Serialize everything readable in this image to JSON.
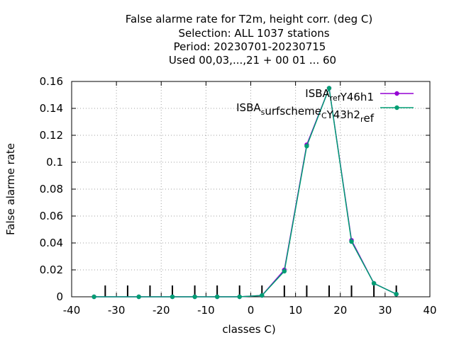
{
  "chart_data": {
    "type": "line",
    "title_lines": [
      "False alarme rate  for T2m, height corr. (deg C)",
      "Selection: ALL   1037 stations",
      "Period: 20230701-20230715",
      "Used  00,03,...,21  + 00 01 ... 60"
    ],
    "xlabel": "classes C)",
    "ylabel": "False alarme rate",
    "xlim": [
      -40,
      40
    ],
    "ylim": [
      0,
      0.16
    ],
    "xticks": [
      -40,
      -30,
      -20,
      -10,
      0,
      10,
      20,
      30,
      40
    ],
    "yticks": [
      0,
      0.02,
      0.04,
      0.06,
      0.08,
      0.1,
      0.12,
      0.14,
      0.16
    ],
    "grid": true,
    "legend_position": "top-right",
    "class_markers": [
      -32.5,
      -27.5,
      -22.5,
      -17.5,
      -12.5,
      -7.5,
      -2.5,
      2.5,
      7.5,
      12.5,
      17.5,
      22.5,
      27.5,
      32.5
    ],
    "series": [
      {
        "name": "ISBA_ref_Y46h1",
        "legend_parts": [
          [
            "ISBA",
            ""
          ],
          [
            "ref",
            "sub"
          ],
          [
            "Y46h1",
            ""
          ]
        ],
        "color": "#9400d3",
        "x": [
          -35,
          -25,
          -17.5,
          -12.5,
          -7.5,
          -2.5,
          2.5,
          7.5,
          12.5,
          17.5,
          22.5,
          27.5,
          32.5
        ],
        "y": [
          0,
          0,
          0,
          0,
          0,
          0,
          0.001,
          0.02,
          0.113,
          0.155,
          0.042,
          0.01,
          0.002
        ]
      },
      {
        "name": "ISBA_surfscheme_CY43h2_ref",
        "legend_parts": [
          [
            "ISBA",
            ""
          ],
          [
            "s",
            "sub"
          ],
          [
            "urfscheme",
            ""
          ],
          [
            "C",
            "sub"
          ],
          [
            "Y43h2",
            ""
          ],
          [
            "r",
            "sub"
          ],
          [
            "ef",
            ""
          ]
        ],
        "color": "#009e73",
        "x": [
          -35,
          -25,
          -17.5,
          -12.5,
          -7.5,
          -2.5,
          2.5,
          7.5,
          12.5,
          17.5,
          22.5,
          27.5,
          32.5
        ],
        "y": [
          0,
          0,
          0,
          0,
          0,
          0,
          0.001,
          0.019,
          0.112,
          0.155,
          0.041,
          0.01,
          0.002
        ]
      }
    ]
  }
}
